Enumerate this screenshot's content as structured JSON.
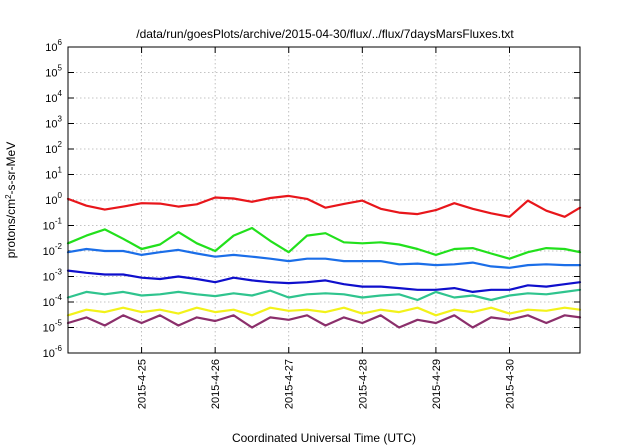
{
  "chart_data": {
    "type": "line",
    "title": "/data/run/goesPlots/archive/2015-04-30/flux/../flux/7daysMarsFluxes.txt",
    "xlabel": "Coordinated Universal Time (UTC)",
    "ylabel": {
      "base": "protons/cm",
      "sup": "2",
      "rest": "-s-sr-MeV"
    },
    "y_scale": "log",
    "ylim_exponents": [
      -6,
      6
    ],
    "y_ticks": [
      {
        "base": "10",
        "exp": "-6"
      },
      {
        "base": "10",
        "exp": "-5"
      },
      {
        "base": "10",
        "exp": "-4"
      },
      {
        "base": "10",
        "exp": "-3"
      },
      {
        "base": "10",
        "exp": "-2"
      },
      {
        "base": "10",
        "exp": "-1"
      },
      {
        "base": "10",
        "exp": "0"
      },
      {
        "base": "10",
        "exp": "1"
      },
      {
        "base": "10",
        "exp": "2"
      },
      {
        "base": "10",
        "exp": "3"
      },
      {
        "base": "10",
        "exp": "4"
      },
      {
        "base": "10",
        "exp": "5"
      },
      {
        "base": "10",
        "exp": "6"
      }
    ],
    "x_range_days": [
      "2015-04-24",
      "2015-04-30T23:00"
    ],
    "x_ticks": [
      "2015-4-25",
      "2015-4-26",
      "2015-4-27",
      "2015-4-28",
      "2015-4-29",
      "2015-4-30"
    ],
    "grid": true,
    "series": [
      {
        "color": "#e8161b",
        "x": [
          "2015-04-24T00:00",
          "2015-04-24T06:00",
          "2015-04-24T12:00",
          "2015-04-24T18:00",
          "2015-04-25T00:00",
          "2015-04-25T06:00",
          "2015-04-25T12:00",
          "2015-04-25T18:00",
          "2015-04-26T00:00",
          "2015-04-26T06:00",
          "2015-04-26T12:00",
          "2015-04-26T18:00",
          "2015-04-27T00:00",
          "2015-04-27T06:00",
          "2015-04-27T12:00",
          "2015-04-27T18:00",
          "2015-04-28T00:00",
          "2015-04-28T06:00",
          "2015-04-28T12:00",
          "2015-04-28T18:00",
          "2015-04-29T00:00",
          "2015-04-29T06:00",
          "2015-04-29T12:00",
          "2015-04-29T18:00",
          "2015-04-30T00:00",
          "2015-04-30T06:00",
          "2015-04-30T12:00",
          "2015-04-30T18:00",
          "2015-04-30T23:00"
        ],
        "y": [
          1.1,
          0.6,
          0.42,
          0.55,
          0.75,
          0.72,
          0.55,
          0.68,
          1.25,
          1.15,
          0.85,
          1.2,
          1.45,
          1.1,
          0.5,
          0.7,
          0.95,
          0.45,
          0.32,
          0.28,
          0.4,
          0.75,
          0.45,
          0.3,
          0.22,
          0.95,
          0.38,
          0.22,
          0.5
        ]
      },
      {
        "color": "#22e01c",
        "x": [
          "2015-04-24T00:00",
          "2015-04-24T06:00",
          "2015-04-24T12:00",
          "2015-04-24T18:00",
          "2015-04-25T00:00",
          "2015-04-25T06:00",
          "2015-04-25T12:00",
          "2015-04-25T18:00",
          "2015-04-26T00:00",
          "2015-04-26T06:00",
          "2015-04-26T12:00",
          "2015-04-26T18:00",
          "2015-04-27T00:00",
          "2015-04-27T06:00",
          "2015-04-27T12:00",
          "2015-04-27T18:00",
          "2015-04-28T00:00",
          "2015-04-28T06:00",
          "2015-04-28T12:00",
          "2015-04-28T18:00",
          "2015-04-29T00:00",
          "2015-04-29T06:00",
          "2015-04-29T12:00",
          "2015-04-29T18:00",
          "2015-04-30T00:00",
          "2015-04-30T06:00",
          "2015-04-30T12:00",
          "2015-04-30T18:00",
          "2015-04-30T23:00"
        ],
        "y": [
          0.02,
          0.04,
          0.07,
          0.03,
          0.012,
          0.018,
          0.055,
          0.02,
          0.01,
          0.04,
          0.08,
          0.025,
          0.009,
          0.04,
          0.05,
          0.022,
          0.02,
          0.022,
          0.018,
          0.012,
          0.007,
          0.012,
          0.013,
          0.008,
          0.005,
          0.009,
          0.013,
          0.012,
          0.009
        ]
      },
      {
        "color": "#1b6ee8",
        "x": [
          "2015-04-24T00:00",
          "2015-04-24T06:00",
          "2015-04-24T12:00",
          "2015-04-24T18:00",
          "2015-04-25T00:00",
          "2015-04-25T06:00",
          "2015-04-25T12:00",
          "2015-04-25T18:00",
          "2015-04-26T00:00",
          "2015-04-26T06:00",
          "2015-04-26T12:00",
          "2015-04-26T18:00",
          "2015-04-27T00:00",
          "2015-04-27T06:00",
          "2015-04-27T12:00",
          "2015-04-27T18:00",
          "2015-04-28T00:00",
          "2015-04-28T06:00",
          "2015-04-28T12:00",
          "2015-04-28T18:00",
          "2015-04-29T00:00",
          "2015-04-29T06:00",
          "2015-04-29T12:00",
          "2015-04-29T18:00",
          "2015-04-30T00:00",
          "2015-04-30T06:00",
          "2015-04-30T12:00",
          "2015-04-30T18:00",
          "2015-04-30T23:00"
        ],
        "y": [
          0.009,
          0.012,
          0.01,
          0.01,
          0.007,
          0.009,
          0.011,
          0.008,
          0.006,
          0.007,
          0.006,
          0.005,
          0.004,
          0.005,
          0.005,
          0.004,
          0.004,
          0.004,
          0.003,
          0.0032,
          0.0028,
          0.003,
          0.0035,
          0.0025,
          0.0022,
          0.0028,
          0.003,
          0.0028,
          0.0028
        ]
      },
      {
        "color": "#0f0fcc",
        "x": [
          "2015-04-24T00:00",
          "2015-04-24T06:00",
          "2015-04-24T12:00",
          "2015-04-24T18:00",
          "2015-04-25T00:00",
          "2015-04-25T06:00",
          "2015-04-25T12:00",
          "2015-04-25T18:00",
          "2015-04-26T00:00",
          "2015-04-26T06:00",
          "2015-04-26T12:00",
          "2015-04-26T18:00",
          "2015-04-27T00:00",
          "2015-04-27T06:00",
          "2015-04-27T12:00",
          "2015-04-27T18:00",
          "2015-04-28T00:00",
          "2015-04-28T06:00",
          "2015-04-28T12:00",
          "2015-04-28T18:00",
          "2015-04-29T00:00",
          "2015-04-29T06:00",
          "2015-04-29T12:00",
          "2015-04-29T18:00",
          "2015-04-30T00:00",
          "2015-04-30T06:00",
          "2015-04-30T12:00",
          "2015-04-30T18:00",
          "2015-04-30T23:00"
        ],
        "y": [
          0.0017,
          0.0014,
          0.0012,
          0.0012,
          0.0009,
          0.0008,
          0.001,
          0.0008,
          0.0006,
          0.0009,
          0.0007,
          0.0006,
          0.00055,
          0.0006,
          0.0007,
          0.0005,
          0.0004,
          0.0004,
          0.00035,
          0.0003,
          0.0003,
          0.00035,
          0.00025,
          0.0003,
          0.0003,
          0.00045,
          0.0004,
          0.0005,
          0.0006
        ]
      },
      {
        "color": "#2fc48e",
        "x": [
          "2015-04-24T00:00",
          "2015-04-24T06:00",
          "2015-04-24T12:00",
          "2015-04-24T18:00",
          "2015-04-25T00:00",
          "2015-04-25T06:00",
          "2015-04-25T12:00",
          "2015-04-25T18:00",
          "2015-04-26T00:00",
          "2015-04-26T06:00",
          "2015-04-26T12:00",
          "2015-04-26T18:00",
          "2015-04-27T00:00",
          "2015-04-27T06:00",
          "2015-04-27T12:00",
          "2015-04-27T18:00",
          "2015-04-28T00:00",
          "2015-04-28T06:00",
          "2015-04-28T12:00",
          "2015-04-28T18:00",
          "2015-04-29T00:00",
          "2015-04-29T06:00",
          "2015-04-29T12:00",
          "2015-04-29T18:00",
          "2015-04-30T00:00",
          "2015-04-30T06:00",
          "2015-04-30T12:00",
          "2015-04-30T18:00",
          "2015-04-30T23:00"
        ],
        "y": [
          0.00015,
          0.00025,
          0.0002,
          0.00025,
          0.00018,
          0.0002,
          0.00025,
          0.0002,
          0.00017,
          0.00022,
          0.00018,
          0.00028,
          0.00015,
          0.0002,
          0.00022,
          0.0002,
          0.00015,
          0.00018,
          0.0002,
          0.00012,
          0.00025,
          0.00015,
          0.00018,
          0.00012,
          0.00018,
          0.00022,
          0.0002,
          0.00025,
          0.0003
        ]
      },
      {
        "color": "#f2f21a",
        "x": [
          "2015-04-24T00:00",
          "2015-04-24T06:00",
          "2015-04-24T12:00",
          "2015-04-24T18:00",
          "2015-04-25T00:00",
          "2015-04-25T06:00",
          "2015-04-25T12:00",
          "2015-04-25T18:00",
          "2015-04-26T00:00",
          "2015-04-26T06:00",
          "2015-04-26T12:00",
          "2015-04-26T18:00",
          "2015-04-27T00:00",
          "2015-04-27T06:00",
          "2015-04-27T12:00",
          "2015-04-27T18:00",
          "2015-04-28T00:00",
          "2015-04-28T06:00",
          "2015-04-28T12:00",
          "2015-04-28T18:00",
          "2015-04-29T00:00",
          "2015-04-29T06:00",
          "2015-04-29T12:00",
          "2015-04-29T18:00",
          "2015-04-30T00:00",
          "2015-04-30T06:00",
          "2015-04-30T12:00",
          "2015-04-30T18:00",
          "2015-04-30T23:00"
        ],
        "y": [
          3e-05,
          5e-05,
          4e-05,
          6e-05,
          4e-05,
          5e-05,
          3.5e-05,
          6e-05,
          4e-05,
          5e-05,
          3e-05,
          6e-05,
          4.5e-05,
          5e-05,
          4e-05,
          6e-05,
          3.5e-05,
          5e-05,
          4e-05,
          6e-05,
          3e-05,
          5e-05,
          4e-05,
          6e-05,
          3.5e-05,
          5e-05,
          4.5e-05,
          6e-05,
          5e-05
        ]
      },
      {
        "color": "#8b2f6b",
        "x": [
          "2015-04-24T00:00",
          "2015-04-24T06:00",
          "2015-04-24T12:00",
          "2015-04-24T18:00",
          "2015-04-25T00:00",
          "2015-04-25T06:00",
          "2015-04-25T12:00",
          "2015-04-25T18:00",
          "2015-04-26T00:00",
          "2015-04-26T06:00",
          "2015-04-26T12:00",
          "2015-04-26T18:00",
          "2015-04-27T00:00",
          "2015-04-27T06:00",
          "2015-04-27T12:00",
          "2015-04-27T18:00",
          "2015-04-28T00:00",
          "2015-04-28T06:00",
          "2015-04-28T12:00",
          "2015-04-28T18:00",
          "2015-04-29T00:00",
          "2015-04-29T06:00",
          "2015-04-29T12:00",
          "2015-04-29T18:00",
          "2015-04-30T00:00",
          "2015-04-30T06:00",
          "2015-04-30T12:00",
          "2015-04-30T18:00",
          "2015-04-30T23:00"
        ],
        "y": [
          1.5e-05,
          2.5e-05,
          1.2e-05,
          3e-05,
          1.5e-05,
          3e-05,
          1.2e-05,
          2.5e-05,
          1.8e-05,
          3e-05,
          1e-05,
          2.5e-05,
          2e-05,
          3e-05,
          1.2e-05,
          2.5e-05,
          1.5e-05,
          3e-05,
          1e-05,
          2e-05,
          1.5e-05,
          3e-05,
          1e-05,
          2.5e-05,
          2e-05,
          3e-05,
          1.5e-05,
          3e-05,
          2.5e-05
        ]
      }
    ]
  }
}
